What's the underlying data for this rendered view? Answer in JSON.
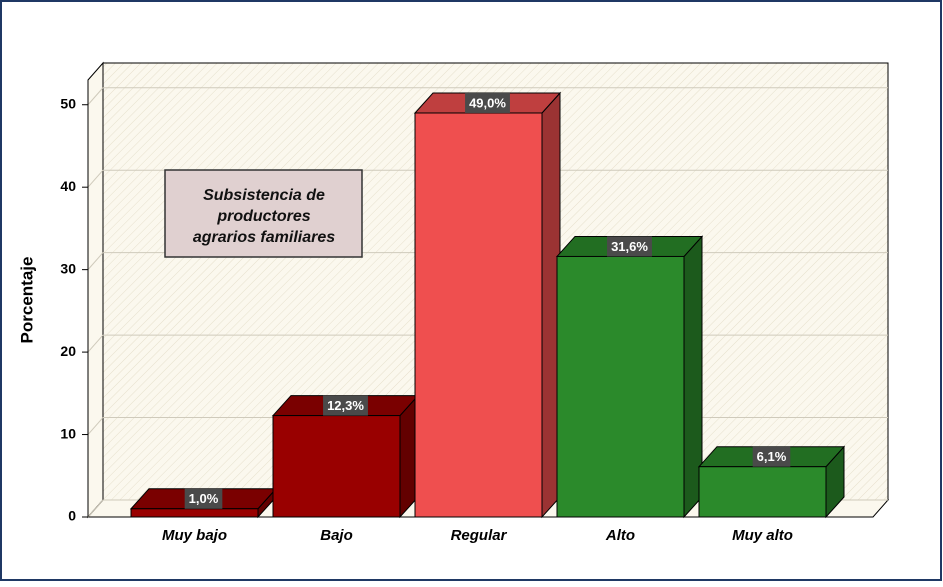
{
  "chart_data": {
    "type": "bar3d",
    "ylabel": "Porcentaje",
    "annotation": [
      "Subsistencia de",
      "productores",
      "agrarios familiares"
    ],
    "categories": [
      "Muy bajo",
      "Bajo",
      "Regular",
      "Alto",
      "Muy alto"
    ],
    "values": [
      1.0,
      12.3,
      49.0,
      31.6,
      6.1
    ],
    "value_labels": [
      "1,0%",
      "12,3%",
      "49,0%",
      "31,6%",
      "6,1%"
    ],
    "colors": [
      "#990000",
      "#990000",
      "#ef4f4f",
      "#2b8a2b",
      "#2b8a2b"
    ],
    "ylim": [
      0,
      53
    ],
    "yticks": [
      0,
      10,
      20,
      30,
      40,
      50
    ],
    "grid": true
  }
}
